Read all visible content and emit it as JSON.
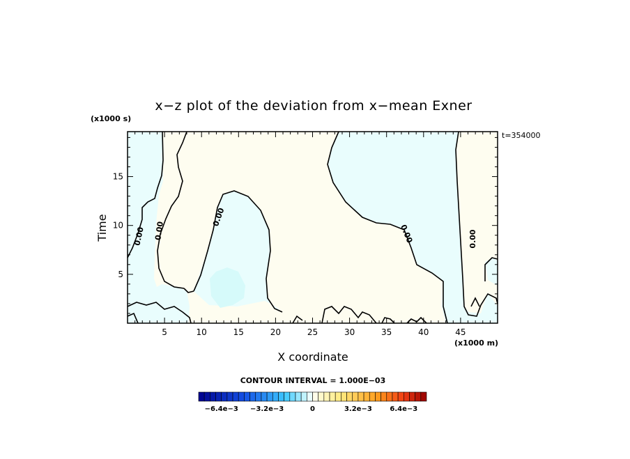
{
  "chart_data": {
    "type": "contour",
    "title": "x−z plot of the deviation from x−mean Exner",
    "xlabel": "X coordinate",
    "ylabel": "Time",
    "x_unit_label": "(x1000 m)",
    "y_unit_label": "(x1000 s)",
    "time_stamp": "t=354000",
    "xlim": [
      0,
      50
    ],
    "ylim": [
      0,
      19.6
    ],
    "x_ticks": [
      5,
      10,
      15,
      20,
      25,
      30,
      35,
      40,
      45
    ],
    "y_ticks": [
      5,
      10,
      15
    ],
    "contour_label": "0.00",
    "contour_interval_text": "CONTOUR INTERVAL = 1.000E−03",
    "colorbar": {
      "min": -0.008,
      "max": 0.008,
      "tick_labels": [
        "−6.4e−3",
        "−3.2e−3",
        "0",
        "3.2e−3",
        "6.4e−3"
      ],
      "tick_values": [
        -0.0064,
        -0.0032,
        0,
        0.0032,
        0.0064
      ]
    },
    "colors": {
      "positive_fill": "#fefdf0",
      "negative_fill": "#e9fdfd",
      "negative_core": "#d6fafa"
    }
  }
}
